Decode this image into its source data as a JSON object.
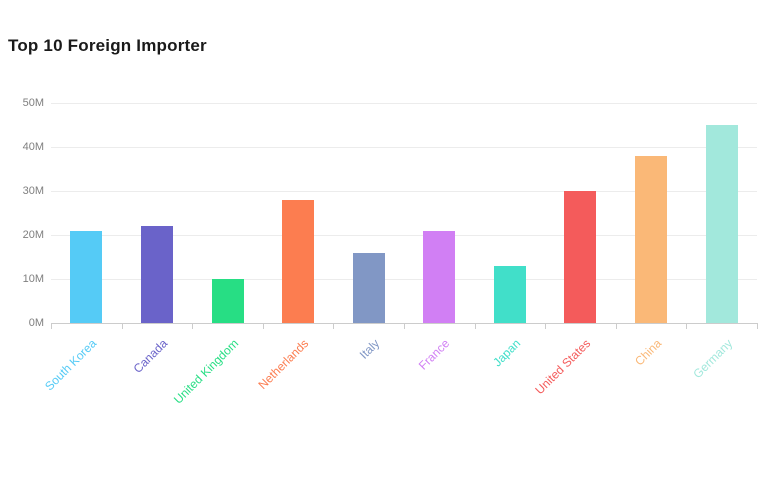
{
  "page": {
    "background": "#ffffff"
  },
  "header": {
    "title": "Top 10 Foreign Importer"
  },
  "chart_data": {
    "type": "bar",
    "title": "Top 10 Foreign Importer",
    "categories": [
      "South Korea",
      "Canada",
      "United Kingdom",
      "Netherlands",
      "Italy",
      "France",
      "Japan",
      "United States",
      "China",
      "Germany"
    ],
    "values": [
      21,
      22,
      10,
      28,
      16,
      21,
      13,
      30,
      38,
      45
    ],
    "unit": "M",
    "values_display": [
      "21M",
      "22M",
      "10M",
      "28M",
      "16M",
      "21M",
      "13M",
      "30M",
      "38M",
      "45M"
    ],
    "xlabel": "",
    "ylabel": "",
    "ylim": [
      0,
      50
    ],
    "ytick_labels": [
      "50M",
      "40M",
      "30M",
      "20M",
      "10M",
      "0M"
    ],
    "grid": true,
    "legend": false,
    "bar_colors": [
      "#55CBF6",
      "#6A63C9",
      "#27DE84",
      "#FC7D50",
      "#8197C5",
      "#D17FF4",
      "#41DFC9",
      "#F45B5B",
      "#FAB877",
      "#A2E8DC"
    ],
    "style": {
      "grid_color": "#ececec",
      "axis_color": "#cccccc",
      "ytick_label_color": "#7f7f7f",
      "title_color": "#1a1a1a"
    }
  }
}
